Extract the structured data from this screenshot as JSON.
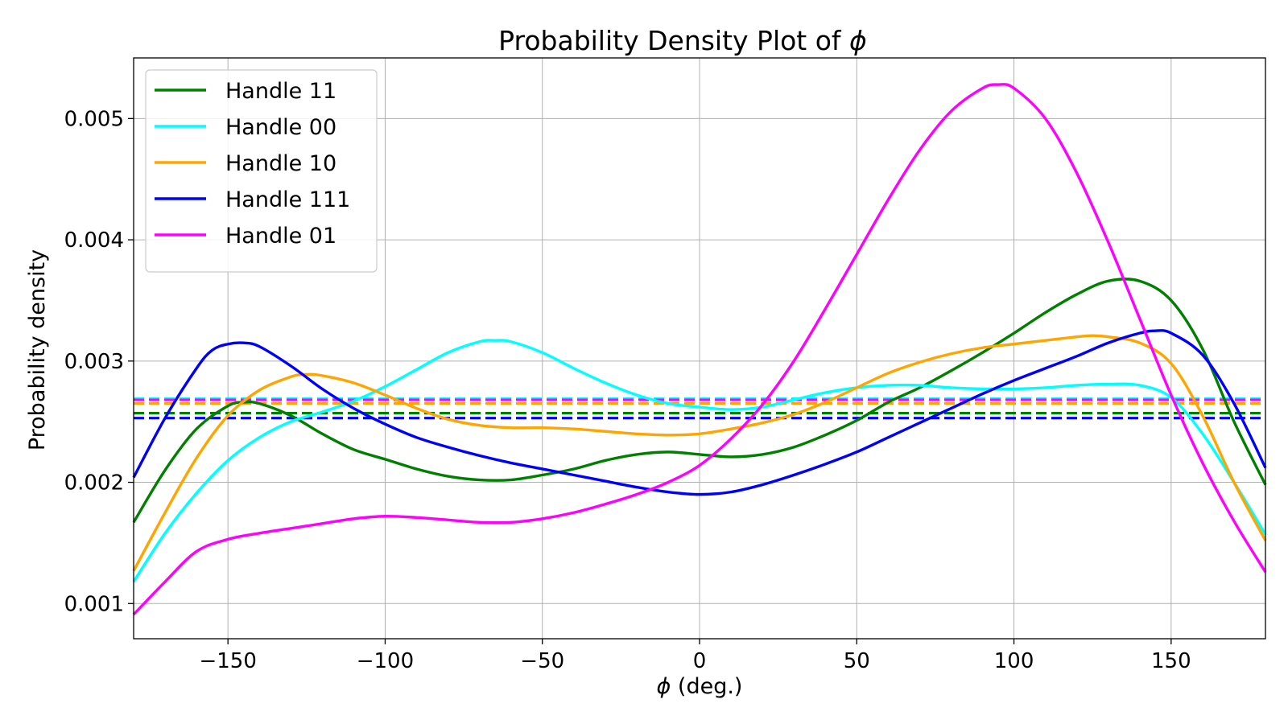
{
  "chart_data": {
    "type": "line",
    "title_text": "Probability Density Plot of ",
    "title_symbol": "ϕ",
    "xlabel_symbol": "ϕ",
    "xlabel_text": " (deg.)",
    "ylabel": "Probability density",
    "xlim": [
      -180,
      180
    ],
    "ylim": [
      0.00071,
      0.0055
    ],
    "xticks": [
      -150,
      -100,
      -50,
      0,
      50,
      100,
      150
    ],
    "xtick_labels": [
      "−150",
      "−100",
      "−50",
      "0",
      "50",
      "100",
      "150"
    ],
    "yticks": [
      0.001,
      0.002,
      0.003,
      0.004,
      0.005
    ],
    "ytick_labels": [
      "0.001",
      "0.002",
      "0.003",
      "0.004",
      "0.005"
    ],
    "grid": true,
    "legend_position": "upper-left",
    "series": [
      {
        "name": "Handle 11",
        "color": "#008000",
        "uniform_level": 0.00257,
        "x": [
          -180,
          -170,
          -160,
          -150,
          -145,
          -140,
          -130,
          -120,
          -110,
          -100,
          -90,
          -80,
          -70,
          -60,
          -50,
          -40,
          -30,
          -20,
          -10,
          0,
          10,
          20,
          30,
          40,
          50,
          60,
          70,
          80,
          90,
          100,
          110,
          120,
          130,
          140,
          150,
          160,
          170,
          180
        ],
        "y": [
          0.00167,
          0.0021,
          0.00244,
          0.00263,
          0.00266,
          0.00265,
          0.00255,
          0.0024,
          0.00227,
          0.00219,
          0.00211,
          0.00205,
          0.00202,
          0.00202,
          0.00206,
          0.00211,
          0.00218,
          0.00223,
          0.00225,
          0.00223,
          0.00221,
          0.00223,
          0.00229,
          0.00239,
          0.00251,
          0.00266,
          0.00278,
          0.00292,
          0.00307,
          0.00323,
          0.0034,
          0.00355,
          0.00366,
          0.00366,
          0.0035,
          0.0031,
          0.0025,
          0.00198
        ]
      },
      {
        "name": "Handle 00",
        "color": "#00ffff",
        "uniform_level": 0.00269,
        "x": [
          -180,
          -170,
          -160,
          -150,
          -140,
          -130,
          -120,
          -110,
          -100,
          -90,
          -80,
          -70,
          -65,
          -60,
          -50,
          -40,
          -30,
          -20,
          -10,
          0,
          10,
          20,
          30,
          40,
          50,
          60,
          70,
          80,
          90,
          100,
          110,
          120,
          130,
          140,
          150,
          160,
          170,
          180
        ],
        "y": [
          0.00118,
          0.00158,
          0.00191,
          0.00218,
          0.00237,
          0.0025,
          0.00258,
          0.00267,
          0.00279,
          0.00293,
          0.00307,
          0.00316,
          0.00317,
          0.00316,
          0.00307,
          0.00294,
          0.00282,
          0.00272,
          0.00265,
          0.00262,
          0.0026,
          0.00262,
          0.00268,
          0.00274,
          0.00278,
          0.0028,
          0.0028,
          0.00278,
          0.00277,
          0.00277,
          0.00278,
          0.0028,
          0.00281,
          0.0028,
          0.0027,
          0.0024,
          0.002,
          0.00157
        ]
      },
      {
        "name": "Handle 10",
        "color": "#ffa500",
        "uniform_level": 0.00265,
        "x": [
          -180,
          -170,
          -160,
          -150,
          -140,
          -130,
          -125,
          -120,
          -110,
          -100,
          -90,
          -80,
          -70,
          -60,
          -50,
          -40,
          -30,
          -20,
          -10,
          0,
          10,
          20,
          30,
          40,
          50,
          60,
          70,
          80,
          90,
          100,
          110,
          120,
          125,
          130,
          140,
          150,
          160,
          170,
          180
        ],
        "y": [
          0.00127,
          0.00175,
          0.0022,
          0.00255,
          0.00276,
          0.00287,
          0.00289,
          0.00288,
          0.00282,
          0.00272,
          0.00261,
          0.00252,
          0.00247,
          0.00245,
          0.00245,
          0.00244,
          0.00242,
          0.0024,
          0.00239,
          0.0024,
          0.00244,
          0.00249,
          0.00256,
          0.00266,
          0.00278,
          0.0029,
          0.00299,
          0.00306,
          0.00311,
          0.00314,
          0.00317,
          0.0032,
          0.00321,
          0.0032,
          0.00315,
          0.00298,
          0.00255,
          0.002,
          0.00152
        ]
      },
      {
        "name": "Handle 111",
        "color": "#0000ff",
        "uniform_level": 0.00253,
        "x": [
          -180,
          -170,
          -160,
          -155,
          -150,
          -145,
          -140,
          -130,
          -120,
          -110,
          -100,
          -90,
          -80,
          -70,
          -60,
          -50,
          -40,
          -30,
          -20,
          -10,
          0,
          10,
          20,
          30,
          40,
          50,
          60,
          70,
          80,
          90,
          100,
          110,
          120,
          130,
          140,
          145,
          150,
          160,
          170,
          180
        ],
        "y": [
          0.00204,
          0.00253,
          0.00294,
          0.00309,
          0.00314,
          0.00315,
          0.00312,
          0.00296,
          0.00277,
          0.00261,
          0.00248,
          0.00237,
          0.00229,
          0.00222,
          0.00216,
          0.00211,
          0.00206,
          0.00201,
          0.00196,
          0.00192,
          0.0019,
          0.00192,
          0.00198,
          0.00206,
          0.00215,
          0.00225,
          0.00237,
          0.00249,
          0.00261,
          0.00273,
          0.00284,
          0.00294,
          0.00304,
          0.00315,
          0.00323,
          0.00325,
          0.00323,
          0.00305,
          0.00265,
          0.00212
        ]
      },
      {
        "name": "Handle 01",
        "color": "#ff00ff",
        "uniform_level": 0.00268,
        "x": [
          -180,
          -170,
          -160,
          -150,
          -140,
          -130,
          -120,
          -110,
          -100,
          -90,
          -80,
          -70,
          -60,
          -50,
          -40,
          -30,
          -20,
          -10,
          0,
          10,
          20,
          30,
          40,
          50,
          60,
          70,
          80,
          90,
          95,
          100,
          110,
          120,
          130,
          140,
          150,
          160,
          170,
          180
        ],
        "y": [
          0.00091,
          0.00118,
          0.00143,
          0.00153,
          0.00158,
          0.00162,
          0.00166,
          0.0017,
          0.00172,
          0.00171,
          0.00169,
          0.00167,
          0.00167,
          0.0017,
          0.00175,
          0.00182,
          0.0019,
          0.002,
          0.00214,
          0.00236,
          0.00264,
          0.003,
          0.00343,
          0.00388,
          0.00433,
          0.00474,
          0.00506,
          0.00525,
          0.00528,
          0.00525,
          0.005,
          0.00455,
          0.00398,
          0.00335,
          0.00272,
          0.00216,
          0.00168,
          0.00126
        ]
      }
    ]
  }
}
